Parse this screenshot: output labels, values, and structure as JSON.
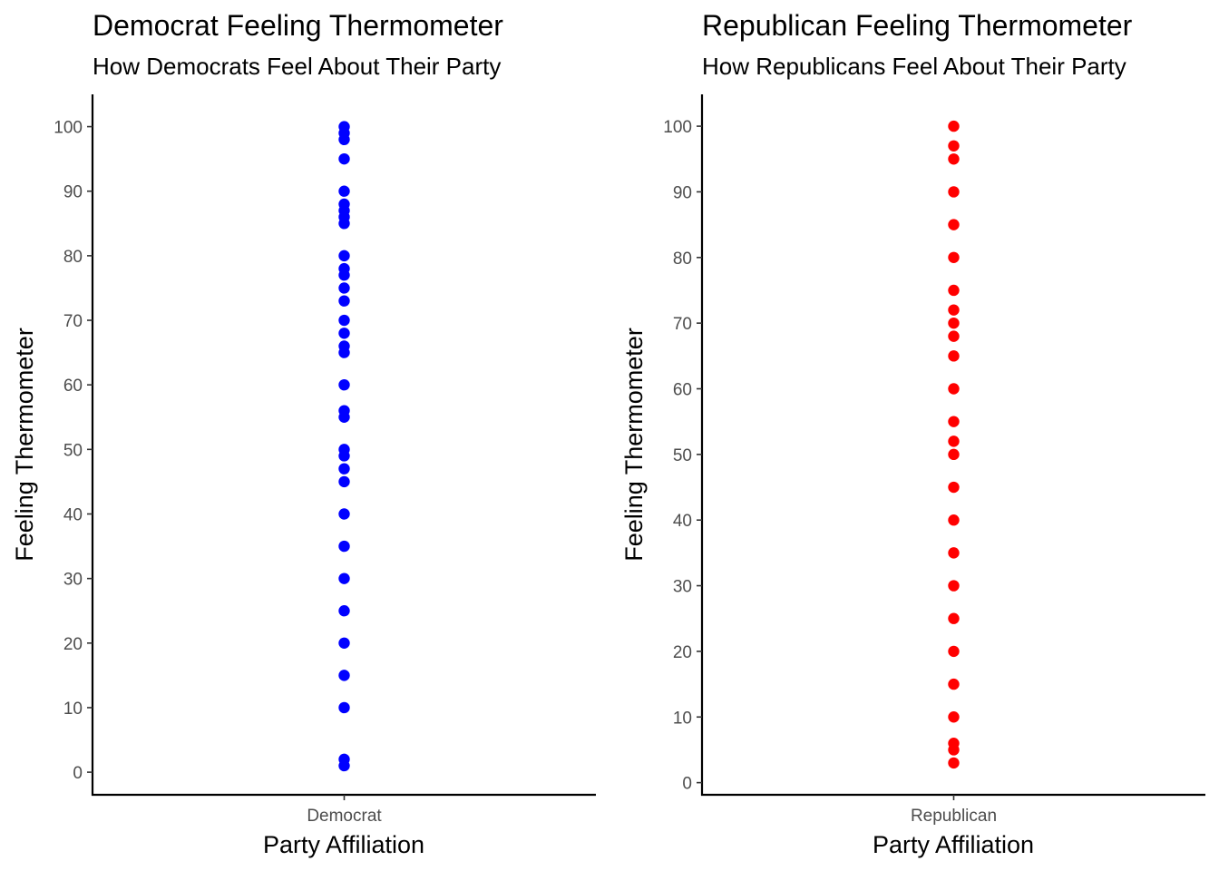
{
  "chart_data": [
    {
      "type": "scatter",
      "title": "Democrat Feeling Thermometer",
      "subtitle": "How Democrats Feel About Their Party",
      "xlabel": "Party Affiliation",
      "ylabel": "Feeling Thermometer",
      "categories": [
        "Democrat"
      ],
      "color": "#0000ff",
      "ylim": [
        -3.5,
        105
      ],
      "yticks": [
        0,
        10,
        20,
        30,
        40,
        50,
        60,
        70,
        80,
        90,
        100
      ],
      "grid": false,
      "legend": "none",
      "series": [
        {
          "category": "Democrat",
          "values": [
            100,
            99,
            98,
            95,
            90,
            88,
            87,
            86,
            85,
            80,
            78,
            77,
            75,
            73,
            70,
            68,
            66,
            65,
            60,
            56,
            55,
            50,
            49,
            47,
            45,
            40,
            35,
            30,
            25,
            20,
            15,
            10,
            2,
            1
          ]
        }
      ]
    },
    {
      "type": "scatter",
      "title": "Republican Feeling Thermometer",
      "subtitle": "How Republicans Feel About Their Party",
      "xlabel": "Party Affiliation",
      "ylabel": "Feeling Thermometer",
      "categories": [
        "Republican"
      ],
      "color": "#ff0000",
      "ylim": [
        -1.85,
        104.85
      ],
      "yticks": [
        0,
        10,
        20,
        30,
        40,
        50,
        60,
        70,
        80,
        90,
        100
      ],
      "grid": false,
      "legend": "none",
      "series": [
        {
          "category": "Republican",
          "values": [
            100,
            97,
            95,
            90,
            85,
            80,
            75,
            72,
            70,
            68,
            65,
            60,
            55,
            52,
            50,
            45,
            40,
            35,
            30,
            25,
            20,
            15,
            10,
            6,
            5,
            3
          ]
        }
      ]
    }
  ]
}
